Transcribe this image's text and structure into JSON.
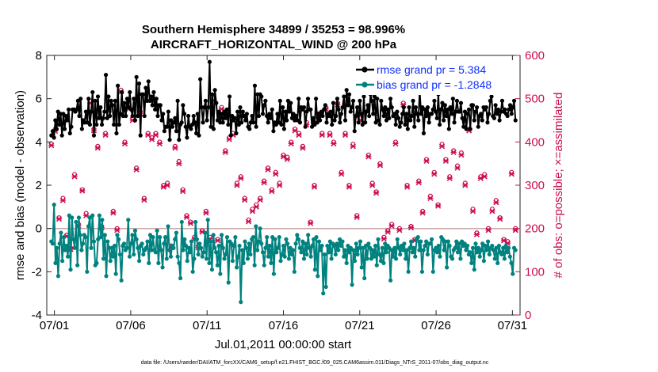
{
  "chart_data": {
    "type": "line",
    "title": "Southern Hemisphere 34899 / 35253 = 98.996%",
    "subtitle": "AIRCRAFT_HORIZONTAL_WIND @ 200 hPa",
    "xlabel": "Jul.01,2011 00:00:00 start",
    "ylabel": "rmse and bias (model - observation)",
    "ylabel_right": "# of obs: o=possible; ×=assimilated",
    "footnote": "data file: /Users/raeder/DAI/ATM_forcXX/CAM6_setup/f.e21.FHIST_BGC.f09_025.CAM6assim.011/Diags_NTrS_2011-07/obs_diag_output.nc",
    "xlim": [
      0.5,
      31.5
    ],
    "ylim": [
      -4,
      8
    ],
    "ylim_right": [
      0,
      600
    ],
    "x_ticks": [
      1,
      6,
      11,
      16,
      21,
      26,
      31
    ],
    "x_tick_labels": [
      "07/01",
      "07/06",
      "07/11",
      "07/16",
      "07/21",
      "07/26",
      "07/31"
    ],
    "y_ticks": [
      -4,
      -2,
      0,
      2,
      4,
      6,
      8
    ],
    "y_tick_labels": [
      "-4",
      "-2",
      "0",
      "2",
      "4",
      "6",
      "8"
    ],
    "y_ticks_right": [
      0,
      100,
      200,
      300,
      400,
      500,
      600
    ],
    "y_tick_labels_right": [
      "0",
      "100",
      "200",
      "300",
      "400",
      "500",
      "600"
    ],
    "legend": {
      "placement": "top-right",
      "entries": [
        "rmse grand pr = 5.384",
        "bias grand pr = -1.2848"
      ]
    },
    "colors": {
      "rmse": "#000000",
      "bias": "#00827f",
      "obs": "#cc0e52",
      "zero_line": "#c8a8a8"
    },
    "series": [
      {
        "name": "rmse",
        "axis": "left",
        "values": [
          4.3,
          4.5,
          4.2,
          5.0,
          4.6,
          5.4,
          4.8,
          5.3,
          4.3,
          5.3,
          4.6,
          5.2,
          5.0,
          5.5,
          4.4,
          4.7,
          5.5,
          5.5,
          5.4,
          5.5,
          5.9,
          5.2,
          6.0,
          4.6,
          5.0,
          4.9,
          5.4,
          4.9,
          6.0,
          4.8,
          5.4,
          6.3,
          4.3,
          5.9,
          4.8,
          6.1,
          5.1,
          5.6,
          4.8,
          5.1,
          5.4,
          7.1,
          5.1,
          6.1,
          5.2,
          5.9,
          5.7,
          4.8,
          5.9,
          4.4,
          6.6,
          4.8,
          5.3,
          6.3,
          5.2,
          5.8,
          5.2,
          6.0,
          5.6,
          6.3,
          5.5,
          5.2,
          6.0,
          5.0,
          7.0,
          5.2,
          6.7,
          4.3,
          6.2,
          6.2,
          5.2,
          6.5,
          5.9,
          6.8,
          5.9,
          6.1,
          5.7,
          6.3,
          5.5,
          6.0,
          5.2,
          5.7,
          5.7,
          5.0,
          5.3,
          4.5,
          4.7,
          4.7,
          5.4,
          4.1,
          5.0,
          4.7,
          4.9,
          5.1,
          4.5,
          5.9,
          4.1,
          4.8,
          4.9,
          5.7,
          5.3,
          4.7,
          4.2,
          5.2,
          4.7,
          4.6,
          4.8,
          5.2,
          4.9,
          4.4,
          5.3,
          4.3,
          6.9,
          5.6,
          4.9,
          5.6,
          5.9,
          5.0,
          5.6,
          7.7,
          4.7,
          6.2,
          4.6,
          6.4,
          5.8,
          5.0,
          5.4,
          4.9,
          5.3,
          4.9,
          5.4,
          5.1,
          5.5,
          4.8,
          6.1,
          4.3,
          5.2,
          5.0,
          5.1,
          4.4,
          5.4,
          4.8,
          5.6,
          4.9,
          5.4,
          5.2,
          5.0,
          5.3,
          4.7,
          4.6,
          4.9,
          5.2,
          4.9,
          6.6,
          4.7,
          6.2,
          5.2,
          6.2,
          6.1,
          5.3,
          5.7,
          5.9,
          5.2,
          4.9,
          5.3,
          5.1,
          5.5,
          4.5,
          4.9,
          4.8,
          5.3,
          4.9,
          5.9,
          4.8,
          5.6,
          4.6,
          5.4,
          5.0,
          5.9,
          5.4,
          5.8,
          5.1,
          5.3,
          5.0,
          5.2,
          5.0,
          6.0,
          4.9,
          5.6,
          5.5,
          5.6,
          4.7,
          5.4,
          6.0,
          5.5,
          5.5,
          4.7,
          5.1,
          4.8,
          6.0,
          4.9,
          5.3,
          5.0,
          5.4,
          5.2,
          5.5,
          5.7,
          4.9,
          5.3,
          5.2,
          5.4,
          4.8,
          5.8,
          5.0,
          5.2,
          6.0,
          5.5,
          4.9,
          5.3,
          5.6,
          6.1,
          5.0,
          6.4,
          5.7,
          6.2,
          5.4,
          5.6,
          5.9,
          4.5,
          5.2,
          5.6,
          4.9,
          5.9,
          5.3,
          4.8,
          6.1,
          4.9,
          5.4,
          5.7,
          5.2,
          6.2,
          5.9,
          5.3,
          6.1,
          4.9,
          6.0,
          5.0,
          4.8,
          5.9,
          5.5,
          5.2,
          5.6,
          5.0,
          5.5,
          5.1,
          6.0,
          5.6,
          5.2,
          5.3,
          4.8,
          5.4,
          5.1,
          4.7,
          4.9,
          5.3,
          5.6,
          4.8,
          5.3,
          4.6,
          5.6,
          5.0,
          5.2,
          5.9,
          4.7,
          5.6,
          5.3,
          5.0,
          6.4,
          5.3,
          5.6,
          4.4,
          5.5,
          5.2,
          5.6,
          4.9,
          5.3,
          5.3,
          5.5,
          5.9,
          5.4,
          5.1,
          6.2,
          4.8,
          5.5,
          5.8,
          5.0,
          5.7,
          5.2,
          5.5,
          4.6,
          5.6,
          5.3,
          6.0,
          4.9,
          5.4,
          5.9,
          5.4,
          5.4,
          5.8,
          5.1,
          4.7,
          5.4,
          4.6,
          5.3,
          5.5,
          4.6,
          5.7,
          5.7,
          5.0,
          5.4,
          5.6,
          4.7,
          5.2,
          5.3,
          5.0,
          5.6,
          5.5,
          5.6,
          4.9,
          5.3,
          5.9,
          6.1,
          5.2,
          5.1,
          5.7,
          5.3,
          5.5,
          5.0,
          5.4,
          5.9,
          5.4,
          5.5,
          5.3,
          5.2,
          5.5,
          5.7,
          5.3,
          5.6,
          5.9,
          5.0
        ]
      },
      {
        "name": "bias",
        "axis": "left",
        "values": [
          -0.6,
          -0.7,
          1.1,
          -1.6,
          -0.9,
          -2.2,
          -0.7,
          -0.2,
          -1.5,
          -0.4,
          -1.0,
          -0.8,
          -1.3,
          0.6,
          -1.9,
          0.5,
          -0.5,
          -0.9,
          0.3,
          -1.7,
          0.5,
          -0.3,
          -1.0,
          -0.7,
          -0.3,
          -0.4,
          -2.0,
          0.1,
          0.5,
          -0.9,
          0.6,
          -0.6,
          -1.7,
          -1.6,
          -0.5,
          0.6,
          -0.4,
          0.4,
          -1.4,
          -0.3,
          -2.2,
          -0.6,
          -0.9,
          -1.5,
          -0.9,
          -1.3,
          -0.8,
          -2.1,
          -0.3,
          -0.5,
          -1.2,
          -2.4,
          -0.8,
          -0.7,
          -1.0,
          -0.9,
          0.4,
          -1.3,
          -0.7,
          -0.3,
          -1.2,
          -0.1,
          -0.5,
          -0.9,
          -1.5,
          -0.8,
          -0.7,
          -1.2,
          -1.0,
          -0.9,
          -0.6,
          -1.6,
          -0.3,
          -1.0,
          -0.4,
          -1.0,
          -1.1,
          -0.1,
          -1.6,
          -0.4,
          -1.0,
          -1.8,
          -0.7,
          -0.4,
          -1.4,
          0.1,
          -1.0,
          -1.3,
          -0.8,
          -0.9,
          -0.5,
          -0.2,
          -1.3,
          -1.6,
          -2.3,
          0.3,
          -1.0,
          -0.5,
          -0.8,
          -1.5,
          -0.9,
          -1.1,
          -0.6,
          -2.0,
          -1.4,
          0.3,
          -0.5,
          -1.2,
          -0.7,
          -0.9,
          -1.3,
          -1.1,
          -0.2,
          -1.4,
          0.4,
          -1.6,
          -0.6,
          -1.9,
          -0.3,
          -0.9,
          -1.1,
          -1.7,
          -0.8,
          -2.1,
          -0.3,
          -0.9,
          -1.4,
          -1.2,
          -0.4,
          -2.5,
          -0.6,
          -0.7,
          -1.5,
          -0.8,
          -0.4,
          -1.8,
          -1.3,
          -0.8,
          -3.4,
          -1.0,
          -1.6,
          -0.6,
          -0.9,
          -1.4,
          -0.7,
          -1.2,
          -0.5,
          -0.4,
          -1.7,
          0.1,
          -1.0,
          -0.6,
          0.0,
          -0.7,
          -1.1,
          -1.7,
          -0.9,
          -0.4,
          -1.3,
          -0.8,
          -1.6,
          -0.4,
          -2.1,
          -0.5,
          -1.1,
          -0.9,
          -0.4,
          -1.5,
          -1.2,
          -0.8,
          -1.3,
          -0.5,
          -0.7,
          -1.4,
          -0.9,
          -1.2,
          -1.0,
          -2.0,
          -0.7,
          -0.3,
          -0.5,
          -0.9,
          -1.1,
          -0.6,
          -1.4,
          -0.7,
          -1.2,
          -0.3,
          -0.9,
          -1.3,
          -0.8,
          -0.5,
          -1.9,
          -0.4,
          -2.2,
          -0.6,
          -1.0,
          -0.8,
          -3.0,
          -1.2,
          -2.7,
          -0.8,
          -1.1,
          -0.6,
          -1.4,
          -0.7,
          -0.8,
          -1.2,
          -0.7,
          -1.0,
          -0.5,
          -0.8,
          -0.6,
          -1.3,
          -1.0,
          -1.6,
          -0.8,
          -1.1,
          -0.9,
          -2.6,
          -1.0,
          -1.5,
          -0.7,
          -1.2,
          -0.9,
          -0.6,
          -1.8,
          -0.9,
          -2.3,
          -0.8,
          -1.4,
          -0.7,
          -0.9,
          -1.4,
          -1.0,
          -1.3,
          -0.8,
          -1.7,
          -0.5,
          -1.2,
          -1.5,
          -0.9,
          -1.6,
          -0.7,
          -1.1,
          -0.8,
          -0.9,
          -2.4,
          -1.0,
          -1.3,
          -0.9,
          -1.4,
          -0.5,
          -0.9,
          -1.2,
          -0.8,
          -1.0,
          -0.7,
          -1.4,
          -1.0,
          -2.0,
          -0.9,
          -0.6,
          -1.1,
          -0.9,
          -1.3,
          -0.5,
          -0.4,
          -1.0,
          -0.6,
          -2.0,
          -1.0,
          -0.8,
          -0.6,
          -1.2,
          -0.7,
          -0.7,
          -0.5,
          -2.0,
          -1.0,
          -0.9,
          -1.1,
          -0.8,
          -1.3,
          -0.4,
          -0.5,
          -1.0,
          -0.6,
          -1.8,
          -0.6,
          -0.8,
          -1.3,
          -1.4,
          -1.0,
          -0.9,
          -0.6,
          -1.1,
          -0.7,
          -1.4,
          -0.6,
          -0.8,
          -0.7,
          -1.0,
          -0.8,
          -1.2,
          -1.1,
          -1.6,
          -0.9,
          -1.9,
          -0.7,
          -1.1,
          -0.9,
          -1.3,
          -1.0,
          -0.7,
          -1.5,
          -0.8,
          -1.0,
          -0.6,
          -1.2,
          -0.9,
          -0.8,
          -1.0,
          -1.4,
          -0.9,
          -1.6,
          -0.8,
          -1.1,
          -1.2,
          -0.9,
          -1.4,
          -0.8,
          -1.1,
          -0.9,
          -1.3,
          -1.6,
          -2.1,
          -0.9,
          -1.0
        ]
      },
      {
        "name": "obs_possible",
        "axis": "right",
        "marker": "o",
        "values": [
          396,
          430,
          225,
          270,
          185,
          155,
          325,
          210,
          290,
          235,
          495,
          430,
          390,
          205,
          420,
          480,
          240,
          200,
          520,
          400,
          480,
          455,
          340,
          470,
          270,
          420,
          410,
          420,
          400,
          300,
          305,
          160,
          390,
          355,
          290,
          230,
          215,
          180,
          160,
          195,
          240,
          180,
          500,
          175,
          480,
          380,
          410,
          420,
          305,
          320,
          270,
          220,
          245,
          255,
          270,
          310,
          340,
          290,
          330,
          305,
          370,
          365,
          400,
          430,
          420,
          390,
          445,
          215,
          300,
          465,
          420,
          480,
          420,
          400,
          490,
          330,
          420,
          300,
          395,
          230,
          455,
          525,
          370,
          305,
          285,
          350,
          180,
          195,
          210,
          400,
          200,
          490,
          300,
          205,
          175,
          310,
          240,
          360,
          275,
          330,
          255,
          395,
          360,
          320,
          380,
          345,
          375,
          305,
          430,
          245,
          190,
          320,
          325,
          200,
          245,
          265,
          225,
          175,
          170,
          330,
          200
        ]
      },
      {
        "name": "obs_assimilated",
        "axis": "right",
        "marker": "x",
        "values": [
          392,
          425,
          222,
          265,
          182,
          152,
          320,
          206,
          287,
          230,
          490,
          426,
          386,
          202,
          416,
          474,
          236,
          196,
          516,
          396,
          476,
          450,
          336,
          466,
          266,
          416,
          406,
          416,
          396,
          296,
          300,
          156,
          386,
          350,
          286,
          226,
          212,
          176,
          156,
          192,
          236,
          176,
          496,
          172,
          476,
          376,
          406,
          416,
          300,
          316,
          266,
          216,
          240,
          250,
          266,
          306,
          336,
          286,
          326,
          300,
          366,
          360,
          396,
          426,
          416,
          386,
          440,
          212,
          296,
          460,
          416,
          476,
          416,
          396,
          486,
          326,
          416,
          296,
          390,
          226,
          450,
          520,
          366,
          300,
          282,
          346,
          176,
          192,
          206,
          396,
          196,
          486,
          296,
          202,
          172,
          306,
          236,
          356,
          270,
          326,
          252,
          390,
          356,
          316,
          376,
          340,
          370,
          300,
          426,
          240,
          186,
          316,
          320,
          196,
          240,
          260,
          222,
          172,
          166,
          326,
          196
        ]
      }
    ]
  }
}
